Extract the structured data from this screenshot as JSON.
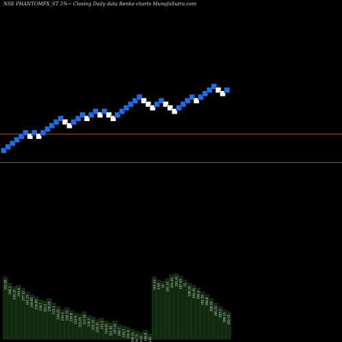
{
  "header": {
    "title": "NSE PHANTOMFX_ST 5%~ Closing Daily data Renko charts MunafaSutra.com"
  },
  "colors": {
    "background": "#000000",
    "up_brick": "#ffffff",
    "down_brick": "#1e6fe6",
    "line": "#b5532a",
    "volume": "#0f2a0f"
  },
  "chart_data": {
    "type": "renko",
    "title": "NSE PHANTOMFX_ST 5%~ Closing Daily data Renko charts MunafaSutra.com",
    "grid": false,
    "bricks": [
      {
        "level": 10,
        "dir": "down"
      },
      {
        "level": 9,
        "dir": "down"
      },
      {
        "level": 8,
        "dir": "down"
      },
      {
        "level": 7,
        "dir": "down"
      },
      {
        "level": 6,
        "dir": "down"
      },
      {
        "level": 5,
        "dir": "down"
      },
      {
        "level": 6,
        "dir": "up"
      },
      {
        "level": 5,
        "dir": "down"
      },
      {
        "level": 6,
        "dir": "up"
      },
      {
        "level": 5,
        "dir": "down"
      },
      {
        "level": 4,
        "dir": "down"
      },
      {
        "level": 3,
        "dir": "down"
      },
      {
        "level": 2,
        "dir": "down"
      },
      {
        "level": 1,
        "dir": "down"
      },
      {
        "level": 2,
        "dir": "up"
      },
      {
        "level": 3,
        "dir": "up"
      },
      {
        "level": 2,
        "dir": "down"
      },
      {
        "level": 1,
        "dir": "down"
      },
      {
        "level": 0,
        "dir": "down"
      },
      {
        "level": 1,
        "dir": "up"
      },
      {
        "level": 0,
        "dir": "down"
      },
      {
        "level": -1,
        "dir": "down"
      },
      {
        "level": 0,
        "dir": "up"
      },
      {
        "level": -1,
        "dir": "down"
      },
      {
        "level": 0,
        "dir": "up"
      },
      {
        "level": 1,
        "dir": "up"
      },
      {
        "level": 0,
        "dir": "down"
      },
      {
        "level": -1,
        "dir": "down"
      },
      {
        "level": -2,
        "dir": "down"
      },
      {
        "level": -3,
        "dir": "down"
      },
      {
        "level": -4,
        "dir": "down"
      },
      {
        "level": -5,
        "dir": "down"
      },
      {
        "level": -4,
        "dir": "up"
      },
      {
        "level": -3,
        "dir": "up"
      },
      {
        "level": -2,
        "dir": "up"
      },
      {
        "level": -3,
        "dir": "down"
      },
      {
        "level": -4,
        "dir": "down"
      },
      {
        "level": -3,
        "dir": "up"
      },
      {
        "level": -2,
        "dir": "up"
      },
      {
        "level": -1,
        "dir": "up"
      },
      {
        "level": -2,
        "dir": "down"
      },
      {
        "level": -3,
        "dir": "down"
      },
      {
        "level": -4,
        "dir": "down"
      },
      {
        "level": -5,
        "dir": "down"
      },
      {
        "level": -4,
        "dir": "up"
      },
      {
        "level": -5,
        "dir": "down"
      },
      {
        "level": -6,
        "dir": "down"
      },
      {
        "level": -7,
        "dir": "down"
      },
      {
        "level": -8,
        "dir": "down"
      },
      {
        "level": -7,
        "dir": "up"
      },
      {
        "level": -6,
        "dir": "up"
      },
      {
        "level": -7,
        "dir": "down"
      }
    ],
    "horizontal_lines": [
      13,
      5
    ],
    "volume": [
      0.95,
      0.85,
      0.8,
      0.82,
      0.78,
      0.72,
      0.68,
      0.65,
      0.6,
      0.58,
      0.62,
      0.55,
      0.5,
      0.45,
      0.48,
      0.44,
      0.4,
      0.38,
      0.42,
      0.36,
      0.34,
      0.3,
      0.32,
      0.28,
      0.25,
      0.28,
      0.22,
      0.2,
      0.18,
      0.15,
      0.12,
      0.1,
      0.14,
      0.08,
      0.95,
      0.9,
      0.88,
      0.92,
      0.98,
      1.0,
      0.96,
      0.9,
      0.85,
      0.82,
      0.78,
      0.72,
      0.68,
      0.62,
      0.55,
      0.5,
      0.45,
      0.42
    ],
    "volume_labels": [
      "252.95",
      "248.1",
      "246.25",
      "244.9",
      "237.15",
      "241.25",
      "249.95",
      "236.85",
      "239.7",
      "245.2",
      "238.25",
      "232.1",
      "240.25",
      "234.3",
      "228.75",
      "230.9",
      "225.9",
      "224.05",
      "221.05",
      "219.3",
      "222.25",
      "218.55",
      "214.3",
      "216.85",
      "211.85",
      "207.45",
      "209.7",
      "204.7",
      "201.9",
      "199.55",
      "194.75",
      "196.65",
      "190.9",
      "6.95",
      "201.55",
      "6.95",
      "25",
      "191.55",
      "201.05",
      "205.45",
      "197.65",
      "25",
      "198.55",
      "204.05",
      "194.4",
      "191.05",
      "186.8",
      "188.55",
      "195.55",
      "183.5",
      "186.15",
      "182.55"
    ]
  }
}
